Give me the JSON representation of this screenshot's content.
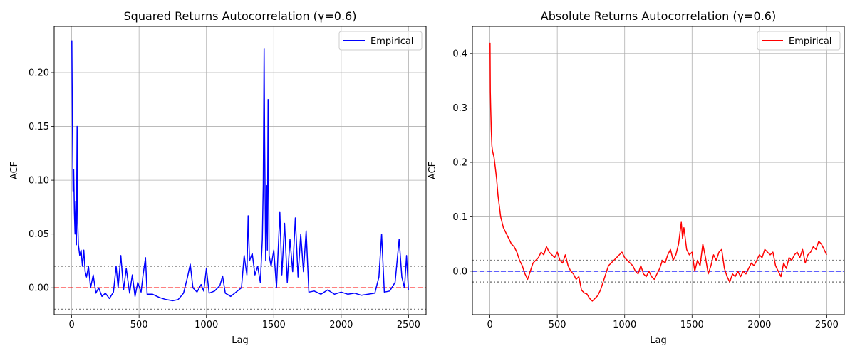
{
  "chart_data": [
    {
      "type": "line",
      "title": "Squared Returns Autocorrelation (γ=0.6)",
      "xlabel": "Lag",
      "ylabel": "ACF",
      "xlim": [
        -130,
        2630
      ],
      "ylim": [
        -0.025,
        0.243
      ],
      "xticks": [
        0,
        500,
        1000,
        1500,
        2000,
        2500
      ],
      "yticks": [
        0.0,
        0.05,
        0.1,
        0.15,
        0.2
      ],
      "ytick_labels": [
        "0.00",
        "0.05",
        "0.10",
        "0.15",
        "0.20"
      ],
      "grid": true,
      "legend": "top-right",
      "series": [
        {
          "name": "Empirical",
          "color": "#0000ff",
          "points": [
            [
              1,
              0.23
            ],
            [
              3,
              0.19
            ],
            [
              6,
              0.15
            ],
            [
              10,
              0.09
            ],
            [
              15,
              0.11
            ],
            [
              20,
              0.07
            ],
            [
              25,
              0.05
            ],
            [
              30,
              0.08
            ],
            [
              35,
              0.04
            ],
            [
              40,
              0.15
            ],
            [
              45,
              0.06
            ],
            [
              50,
              0.04
            ],
            [
              60,
              0.03
            ],
            [
              70,
              0.035
            ],
            [
              80,
              0.02
            ],
            [
              90,
              0.035
            ],
            [
              100,
              0.015
            ],
            [
              110,
              0.01
            ],
            [
              125,
              0.02
            ],
            [
              140,
              0.0
            ],
            [
              160,
              0.012
            ],
            [
              180,
              -0.005
            ],
            [
              200,
              0.0
            ],
            [
              225,
              -0.008
            ],
            [
              250,
              -0.005
            ],
            [
              280,
              -0.01
            ],
            [
              310,
              -0.004
            ],
            [
              330,
              0.02
            ],
            [
              345,
              0.0
            ],
            [
              365,
              0.03
            ],
            [
              385,
              -0.002
            ],
            [
              405,
              0.018
            ],
            [
              430,
              -0.005
            ],
            [
              450,
              0.012
            ],
            [
              470,
              -0.008
            ],
            [
              490,
              0.005
            ],
            [
              515,
              -0.004
            ],
            [
              530,
              0.012
            ],
            [
              548,
              0.028
            ],
            [
              560,
              -0.006
            ],
            [
              600,
              -0.006
            ],
            [
              650,
              -0.009
            ],
            [
              700,
              -0.011
            ],
            [
              750,
              -0.012
            ],
            [
              790,
              -0.011
            ],
            [
              830,
              -0.005
            ],
            [
              860,
              0.01
            ],
            [
              880,
              0.022
            ],
            [
              900,
              0.0
            ],
            [
              930,
              -0.004
            ],
            [
              960,
              0.003
            ],
            [
              980,
              -0.003
            ],
            [
              1000,
              0.018
            ],
            [
              1020,
              -0.005
            ],
            [
              1060,
              -0.003
            ],
            [
              1100,
              0.002
            ],
            [
              1120,
              0.011
            ],
            [
              1140,
              -0.005
            ],
            [
              1180,
              -0.008
            ],
            [
              1220,
              -0.004
            ],
            [
              1260,
              0.0
            ],
            [
              1280,
              0.03
            ],
            [
              1300,
              0.012
            ],
            [
              1310,
              0.067
            ],
            [
              1320,
              0.025
            ],
            [
              1340,
              0.032
            ],
            [
              1360,
              0.012
            ],
            [
              1380,
              0.02
            ],
            [
              1400,
              0.005
            ],
            [
              1415,
              0.045
            ],
            [
              1422,
              0.095
            ],
            [
              1428,
              0.222
            ],
            [
              1432,
              0.14
            ],
            [
              1440,
              0.025
            ],
            [
              1447,
              0.095
            ],
            [
              1452,
              0.035
            ],
            [
              1458,
              0.175
            ],
            [
              1465,
              0.03
            ],
            [
              1480,
              0.02
            ],
            [
              1500,
              0.035
            ],
            [
              1520,
              0.0
            ],
            [
              1545,
              0.07
            ],
            [
              1560,
              0.012
            ],
            [
              1580,
              0.06
            ],
            [
              1600,
              0.005
            ],
            [
              1620,
              0.045
            ],
            [
              1640,
              0.015
            ],
            [
              1660,
              0.065
            ],
            [
              1680,
              0.01
            ],
            [
              1700,
              0.05
            ],
            [
              1720,
              0.015
            ],
            [
              1740,
              0.053
            ],
            [
              1760,
              -0.004
            ],
            [
              1800,
              -0.003
            ],
            [
              1850,
              -0.006
            ],
            [
              1900,
              -0.002
            ],
            [
              1950,
              -0.006
            ],
            [
              2000,
              -0.004
            ],
            [
              2050,
              -0.006
            ],
            [
              2100,
              -0.005
            ],
            [
              2150,
              -0.007
            ],
            [
              2200,
              -0.006
            ],
            [
              2250,
              -0.005
            ],
            [
              2280,
              0.01
            ],
            [
              2300,
              0.05
            ],
            [
              2320,
              -0.004
            ],
            [
              2360,
              -0.003
            ],
            [
              2400,
              0.005
            ],
            [
              2430,
              0.045
            ],
            [
              2450,
              0.01
            ],
            [
              2470,
              0.0
            ],
            [
              2485,
              0.03
            ],
            [
              2499,
              -0.002
            ]
          ]
        }
      ],
      "reference_lines": [
        {
          "y": 0,
          "style": "dashed",
          "color": "#ff0000"
        },
        {
          "y": 0.02,
          "style": "dotted",
          "color": "#808080"
        },
        {
          "y": -0.02,
          "style": "dotted",
          "color": "#808080"
        }
      ]
    },
    {
      "type": "line",
      "title": "Absolute Returns Autocorrelation (γ=0.6)",
      "xlabel": "Lag",
      "ylabel": "ACF",
      "xlim": [
        -130,
        2630
      ],
      "ylim": [
        -0.08,
        0.45
      ],
      "xticks": [
        0,
        500,
        1000,
        1500,
        2000,
        2500
      ],
      "yticks": [
        0.0,
        0.1,
        0.2,
        0.3,
        0.4
      ],
      "ytick_labels": [
        "0.0",
        "0.1",
        "0.2",
        "0.3",
        "0.4"
      ],
      "grid": true,
      "legend": "top-right",
      "series": [
        {
          "name": "Empirical",
          "color": "#ff0000",
          "points": [
            [
              1,
              0.42
            ],
            [
              3,
              0.33
            ],
            [
              6,
              0.3
            ],
            [
              10,
              0.26
            ],
            [
              15,
              0.23
            ],
            [
              20,
              0.22
            ],
            [
              30,
              0.21
            ],
            [
              40,
              0.19
            ],
            [
              50,
              0.17
            ],
            [
              60,
              0.14
            ],
            [
              70,
              0.12
            ],
            [
              80,
              0.1
            ],
            [
              100,
              0.08
            ],
            [
              120,
              0.07
            ],
            [
              140,
              0.06
            ],
            [
              160,
              0.05
            ],
            [
              180,
              0.045
            ],
            [
              200,
              0.035
            ],
            [
              220,
              0.02
            ],
            [
              240,
              0.01
            ],
            [
              260,
              -0.005
            ],
            [
              280,
              -0.015
            ],
            [
              300,
              0.0
            ],
            [
              320,
              0.015
            ],
            [
              340,
              0.02
            ],
            [
              360,
              0.025
            ],
            [
              380,
              0.035
            ],
            [
              400,
              0.03
            ],
            [
              420,
              0.045
            ],
            [
              440,
              0.035
            ],
            [
              460,
              0.03
            ],
            [
              480,
              0.025
            ],
            [
              500,
              0.035
            ],
            [
              520,
              0.02
            ],
            [
              540,
              0.015
            ],
            [
              560,
              0.03
            ],
            [
              580,
              0.01
            ],
            [
              600,
              0.0
            ],
            [
              620,
              -0.005
            ],
            [
              640,
              -0.015
            ],
            [
              660,
              -0.01
            ],
            [
              680,
              -0.035
            ],
            [
              700,
              -0.04
            ],
            [
              720,
              -0.042
            ],
            [
              740,
              -0.05
            ],
            [
              760,
              -0.055
            ],
            [
              780,
              -0.05
            ],
            [
              800,
              -0.045
            ],
            [
              820,
              -0.035
            ],
            [
              840,
              -0.02
            ],
            [
              860,
              -0.005
            ],
            [
              880,
              0.01
            ],
            [
              900,
              0.015
            ],
            [
              920,
              0.02
            ],
            [
              940,
              0.025
            ],
            [
              960,
              0.03
            ],
            [
              980,
              0.035
            ],
            [
              1000,
              0.025
            ],
            [
              1020,
              0.02
            ],
            [
              1040,
              0.015
            ],
            [
              1060,
              0.01
            ],
            [
              1080,
              0.0
            ],
            [
              1100,
              -0.005
            ],
            [
              1120,
              0.01
            ],
            [
              1140,
              -0.005
            ],
            [
              1160,
              -0.01
            ],
            [
              1180,
              0.0
            ],
            [
              1200,
              -0.01
            ],
            [
              1220,
              -0.015
            ],
            [
              1240,
              -0.005
            ],
            [
              1260,
              0.005
            ],
            [
              1280,
              0.02
            ],
            [
              1300,
              0.015
            ],
            [
              1320,
              0.03
            ],
            [
              1340,
              0.04
            ],
            [
              1360,
              0.02
            ],
            [
              1380,
              0.03
            ],
            [
              1400,
              0.05
            ],
            [
              1420,
              0.09
            ],
            [
              1430,
              0.06
            ],
            [
              1440,
              0.08
            ],
            [
              1460,
              0.04
            ],
            [
              1480,
              0.03
            ],
            [
              1500,
              0.035
            ],
            [
              1520,
              0.0
            ],
            [
              1540,
              0.02
            ],
            [
              1560,
              0.01
            ],
            [
              1580,
              0.05
            ],
            [
              1600,
              0.025
            ],
            [
              1620,
              -0.005
            ],
            [
              1640,
              0.01
            ],
            [
              1660,
              0.03
            ],
            [
              1680,
              0.02
            ],
            [
              1700,
              0.035
            ],
            [
              1720,
              0.04
            ],
            [
              1740,
              0.005
            ],
            [
              1760,
              -0.01
            ],
            [
              1780,
              -0.02
            ],
            [
              1800,
              -0.005
            ],
            [
              1820,
              -0.01
            ],
            [
              1840,
              0.0
            ],
            [
              1860,
              -0.01
            ],
            [
              1880,
              0.0
            ],
            [
              1900,
              -0.005
            ],
            [
              1920,
              0.005
            ],
            [
              1940,
              0.015
            ],
            [
              1960,
              0.01
            ],
            [
              1980,
              0.02
            ],
            [
              2000,
              0.03
            ],
            [
              2020,
              0.025
            ],
            [
              2040,
              0.04
            ],
            [
              2060,
              0.035
            ],
            [
              2080,
              0.03
            ],
            [
              2100,
              0.035
            ],
            [
              2120,
              0.01
            ],
            [
              2140,
              0.0
            ],
            [
              2160,
              -0.01
            ],
            [
              2180,
              0.015
            ],
            [
              2200,
              0.005
            ],
            [
              2220,
              0.025
            ],
            [
              2240,
              0.02
            ],
            [
              2260,
              0.03
            ],
            [
              2280,
              0.035
            ],
            [
              2300,
              0.025
            ],
            [
              2320,
              0.04
            ],
            [
              2340,
              0.015
            ],
            [
              2360,
              0.03
            ],
            [
              2380,
              0.035
            ],
            [
              2400,
              0.045
            ],
            [
              2420,
              0.04
            ],
            [
              2440,
              0.055
            ],
            [
              2460,
              0.05
            ],
            [
              2480,
              0.04
            ],
            [
              2499,
              0.03
            ]
          ]
        }
      ],
      "reference_lines": [
        {
          "y": 0,
          "style": "dashed",
          "color": "#0000ff"
        },
        {
          "y": 0.02,
          "style": "dotted",
          "color": "#808080"
        },
        {
          "y": -0.02,
          "style": "dotted",
          "color": "#808080"
        }
      ]
    }
  ]
}
